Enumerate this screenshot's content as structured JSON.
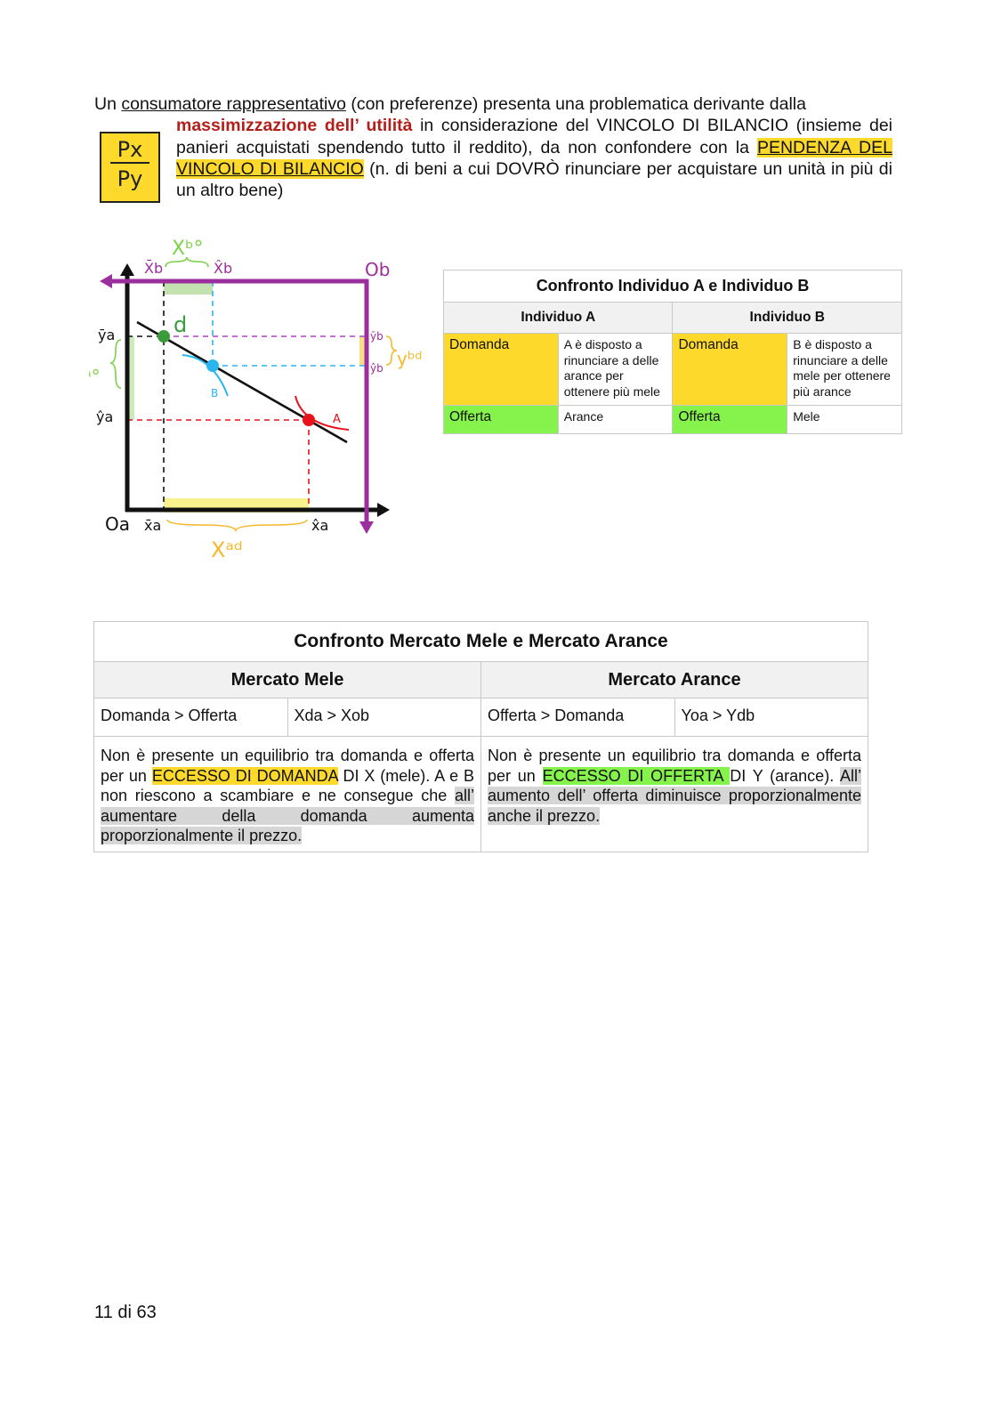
{
  "intro": {
    "p1": "Un ",
    "term": "consumatore rappresentativo",
    "p2": " (con preferenze) presenta una problematica derivante dalla",
    "bold_red": "massimizzazione dell’ utilità",
    "p3": " in considerazione del VINCOLO DI BILANCIO (insieme dei panieri acquistati spendendo tutto il reddito), da non confondere con la ",
    "highlight": "PENDENZA DEL VINCOLO DI BILANCIO",
    "p4": " (n. di beni a cui DOVRÒ rinunciare per acquistare un unità in più di un altro bene)"
  },
  "ratio_box": {
    "numerator": "Px",
    "denominator": "Py",
    "color": "#fcd92a"
  },
  "diagram": {
    "origin_a": "Oa",
    "origin_b": "Ob",
    "x_bar_b": "X̄b",
    "x_hat_b": "X̂b",
    "x_b_offer": "Xᵇ°",
    "y_bar_a": "ȳa",
    "y_hat_a": "ŷa",
    "y_a_offer": "yᵃ°",
    "y_bar_b": "ȳb",
    "y_hat_b": "ŷb",
    "y_b_demand": "yᵇᵈ",
    "x_bar_a": "x̄a",
    "x_hat_a": "x̂a",
    "x_a_demand": "Xᵃᵈ",
    "point_d": "d",
    "point_b": "B",
    "point_a": "A",
    "colors": {
      "axis_a": "#111111",
      "axis_b": "#9b2f9e",
      "d": "#3a9b3a",
      "b": "#29b6f0",
      "a": "#e8121b",
      "offer": "#7bd14a",
      "demand": "#f5b82a"
    }
  },
  "table_individui": {
    "title": "Confronto Individuo A e Individuo B",
    "headers": [
      "Individuo A",
      "Individuo B"
    ],
    "rows": [
      [
        "Domanda",
        "A è disposto a rinunciare a delle arance per ottenere più mele",
        "Domanda",
        "B è disposto a rinunciare a delle mele per ottenere più arance"
      ],
      [
        "Offerta",
        "Arance",
        "Offerta",
        "Mele"
      ]
    ]
  },
  "table_mercati": {
    "title": "Confronto Mercato Mele e Mercato Arance",
    "headers": [
      "Mercato Mele",
      "Mercato Arance"
    ],
    "row1": [
      "Domanda > Offerta",
      "Xda > Xob",
      "Offerta > Domanda",
      "Yoa > Ydb"
    ],
    "left": {
      "t1": "Non è presente un equilibrio tra domanda e offerta per un ",
      "hl": "ECCESSO DI DOMANDA",
      "t2": " DI X (mele). A e B non riescono a scambiare e ne consegue che ",
      "gray": "all’ aumentare della domanda aumenta proporzionalmente il prezzo."
    },
    "right": {
      "t1": "Non è presente un equilibrio tra domanda e offerta per un ",
      "hl": "ECCESSO DI OFFERTA ",
      "t2": "DI Y (arance). ",
      "gray": "All’ aumento dell’ offerta diminuisce proporzionalmente anche il prezzo."
    }
  },
  "footer": {
    "page": "11 di 63"
  }
}
